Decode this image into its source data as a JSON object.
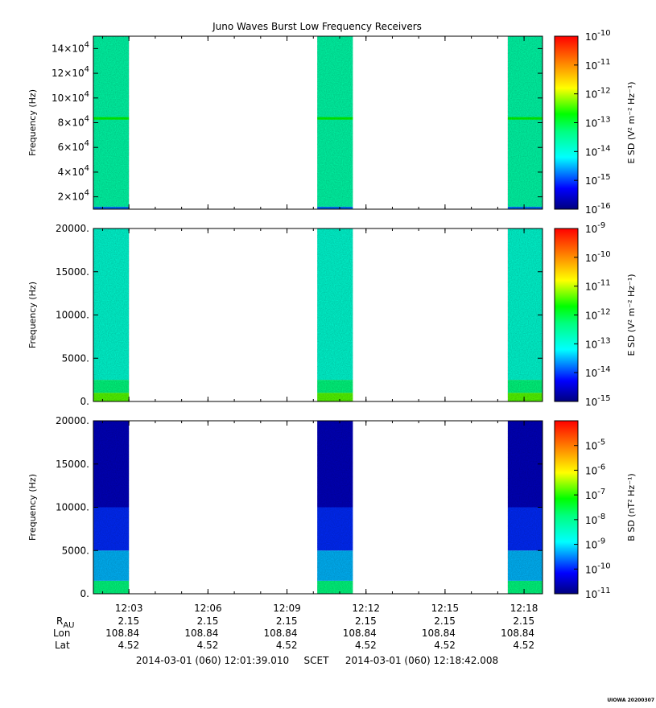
{
  "chart_data": {
    "title": "Juno Waves Burst Low Frequency Receivers",
    "type": "heatmap",
    "time_axis": {
      "start": "12:01:39",
      "end": "12:18:42",
      "tick_labels": [
        "12:03",
        "12:06",
        "12:09",
        "12:12",
        "12:15",
        "12:18"
      ],
      "tick_times": [
        "12:03",
        "12:06",
        "12:09",
        "12:12",
        "12:15",
        "12:18"
      ]
    },
    "bursts": [
      {
        "start": "12:01:39",
        "end": "12:03:00"
      },
      {
        "start": "12:10:09",
        "end": "12:11:30"
      },
      {
        "start": "12:17:23",
        "end": "12:18:42"
      }
    ],
    "panels": [
      {
        "ylabel": "Frequency (Hz)",
        "ylim": [
          10000,
          150000
        ],
        "y_ticks": [
          {
            "value": 20000,
            "mant": "2×10",
            "exp": "4"
          },
          {
            "value": 40000,
            "mant": "4×10",
            "exp": "4"
          },
          {
            "value": 60000,
            "mant": "6×10",
            "exp": "4"
          },
          {
            "value": 80000,
            "mant": "8×10",
            "exp": "4"
          },
          {
            "value": 100000,
            "mant": "10×10",
            "exp": "4"
          },
          {
            "value": 120000,
            "mant": "12×10",
            "exp": "4"
          },
          {
            "value": 140000,
            "mant": "14×10",
            "exp": "4"
          }
        ],
        "colorbar": {
          "label": "E SD (V² m⁻² Hz⁻¹)",
          "range_exp": [
            -16,
            -10
          ],
          "tick_exps": [
            "-16",
            "-15",
            "-14",
            "-13",
            "-12",
            "-11",
            "-10"
          ]
        },
        "spectral_density_levels": [
          {
            "freq_range": [
              10000,
              12000
            ],
            "color_level": 0.2
          },
          {
            "freq_range": [
              12000,
              150000
            ],
            "color_level": 0.4
          },
          {
            "freq_range": [
              82500,
              84500
            ],
            "color_level": 0.55
          }
        ]
      },
      {
        "ylabel": "Frequency (Hz)",
        "ylim": [
          0,
          20000
        ],
        "y_ticks": [
          {
            "value": 0,
            "label": "0."
          },
          {
            "value": 5000,
            "label": "5000."
          },
          {
            "value": 10000,
            "label": "10000."
          },
          {
            "value": 15000,
            "label": "15000."
          },
          {
            "value": 20000,
            "label": "20000."
          }
        ],
        "colorbar": {
          "label": "E SD (V² m⁻² Hz⁻¹)",
          "range_exp": [
            -15,
            -9
          ],
          "tick_exps": [
            "-15",
            "-14",
            "-13",
            "-12",
            "-11",
            "-10",
            "-9"
          ]
        },
        "spectral_density_levels": [
          {
            "freq_range": [
              0,
              1000
            ],
            "color_level": 0.6
          },
          {
            "freq_range": [
              1000,
              2500
            ],
            "color_level": 0.45
          },
          {
            "freq_range": [
              2500,
              20000
            ],
            "color_level": 0.35
          }
        ]
      },
      {
        "ylabel": "Frequency (Hz)",
        "ylim": [
          0,
          20000
        ],
        "y_ticks": [
          {
            "value": 0,
            "label": "0."
          },
          {
            "value": 5000,
            "label": "5000."
          },
          {
            "value": 10000,
            "label": "10000."
          },
          {
            "value": 15000,
            "label": "15000."
          },
          {
            "value": 20000,
            "label": "20000."
          }
        ],
        "colorbar": {
          "label": "B SD (nT² Hz⁻¹)",
          "range_exp": [
            -11,
            -4
          ],
          "tick_exps": [
            "-11",
            "-10",
            "-9",
            "-8",
            "-7",
            "-6",
            "-5"
          ]
        },
        "spectral_density_levels": [
          {
            "freq_range": [
              0,
              1500
            ],
            "color_level": 0.45
          },
          {
            "freq_range": [
              1500,
              5000
            ],
            "color_level": 0.25
          },
          {
            "freq_range": [
              5000,
              10000
            ],
            "color_level": 0.15
          },
          {
            "freq_range": [
              10000,
              20000
            ],
            "color_level": 0.06
          }
        ]
      }
    ]
  },
  "ephemeris": {
    "row_labels": {
      "r": "R",
      "r_sub": "AU",
      "lon": "Lon",
      "lat": "Lat"
    },
    "r": [
      "2.15",
      "2.15",
      "2.15",
      "2.15",
      "2.15",
      "2.15"
    ],
    "lon": [
      "108.84",
      "108.84",
      "108.84",
      "108.84",
      "108.84",
      "108.84"
    ],
    "lat": [
      "4.52",
      "4.52",
      "4.52",
      "4.52",
      "4.52",
      "4.52"
    ]
  },
  "footer": {
    "start": "2014-03-01 (060) 12:01:39.010",
    "frame": "SCET",
    "end": "2014-03-01 (060) 12:18:42.008"
  },
  "stamp": "UIOWA 20200307"
}
